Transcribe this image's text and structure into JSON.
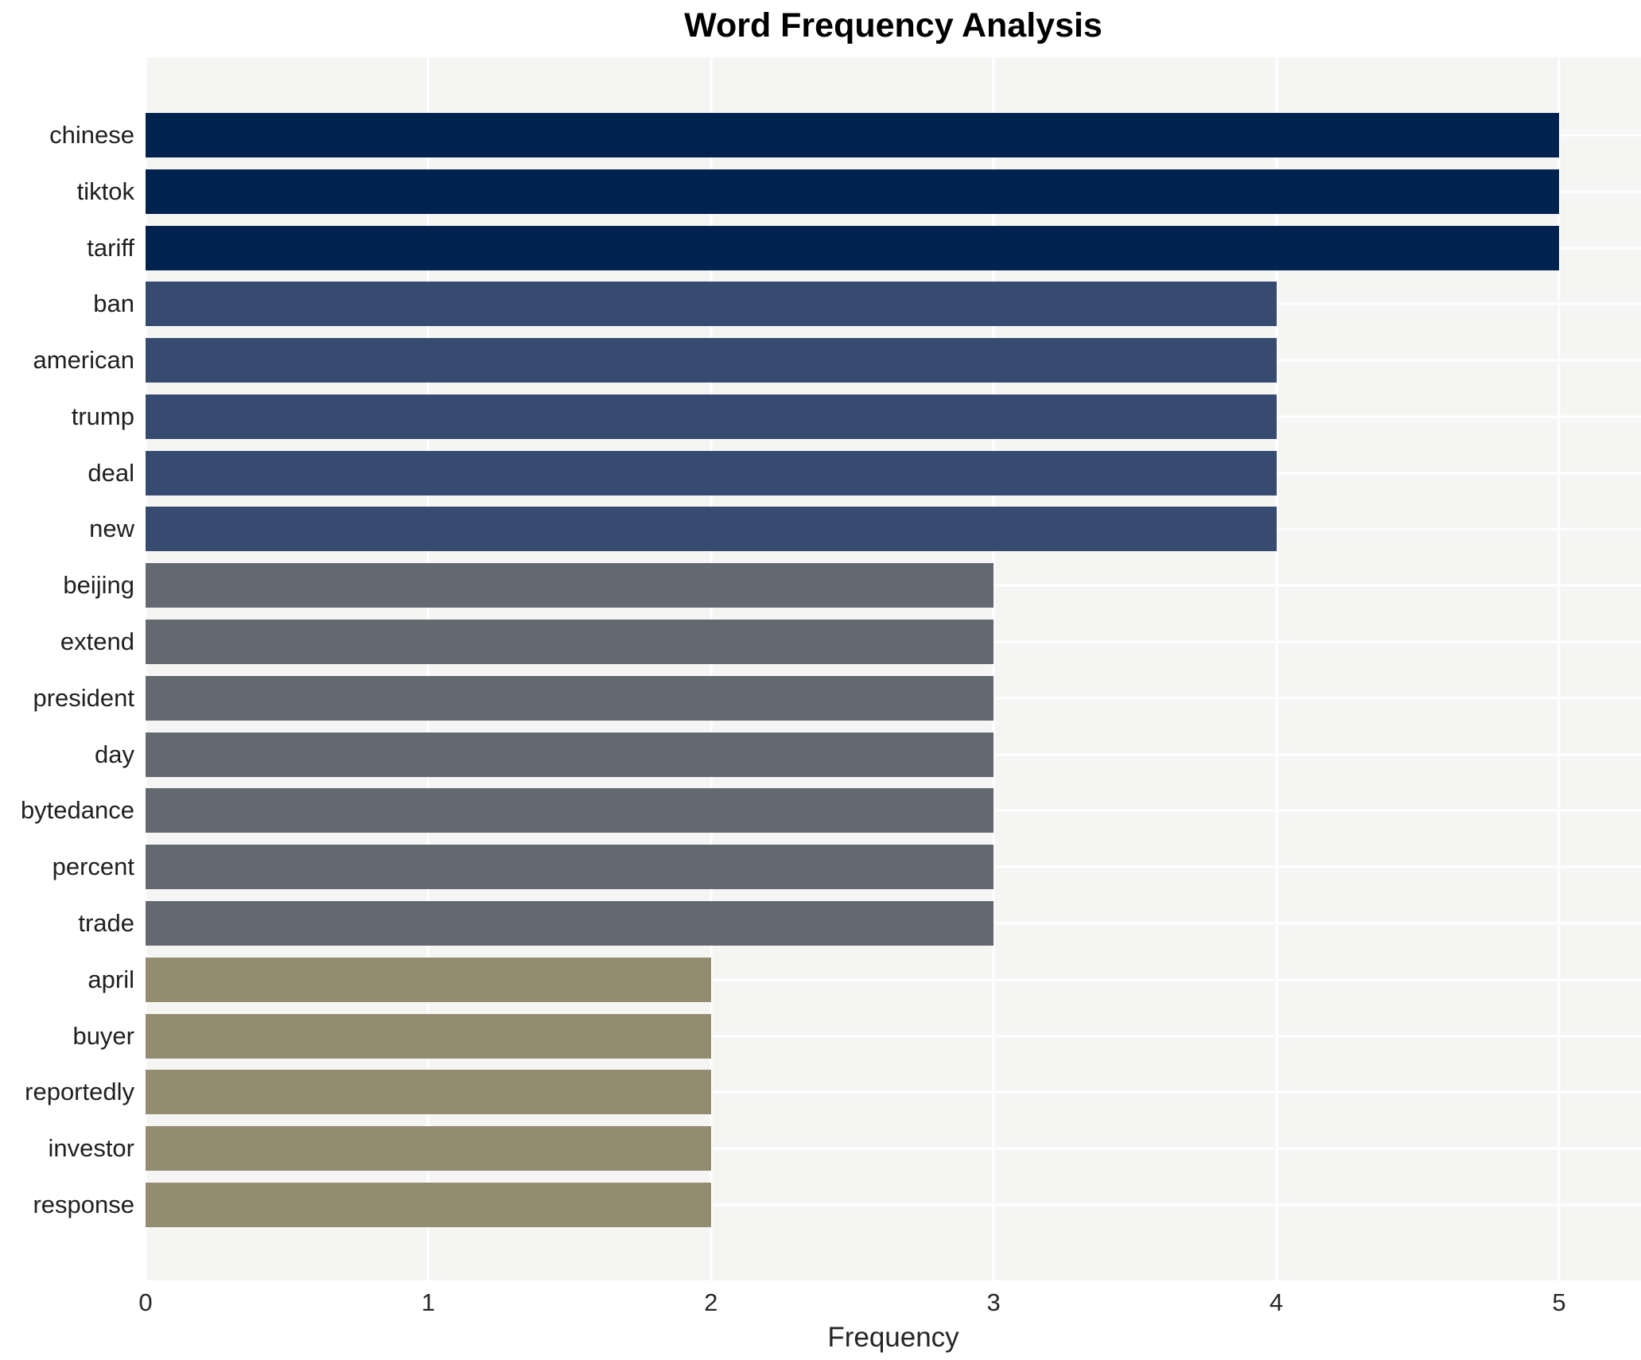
{
  "chart_data": {
    "type": "bar",
    "orientation": "horizontal",
    "title": "Word Frequency Analysis",
    "xlabel": "Frequency",
    "ylabel": "",
    "categories": [
      "chinese",
      "tiktok",
      "tariff",
      "ban",
      "american",
      "trump",
      "deal",
      "new",
      "beijing",
      "extend",
      "president",
      "day",
      "bytedance",
      "percent",
      "trade",
      "april",
      "buyer",
      "reportedly",
      "investor",
      "response"
    ],
    "values": [
      5,
      5,
      5,
      4,
      4,
      4,
      4,
      4,
      3,
      3,
      3,
      3,
      3,
      3,
      3,
      2,
      2,
      2,
      2,
      2
    ],
    "xticks": [
      0,
      1,
      2,
      3,
      4,
      5
    ],
    "xlim": [
      0,
      5.29
    ],
    "grid": true,
    "legend": false,
    "colors_by_value": {
      "5": "#00224e",
      "4": "#374a70",
      "3": "#646870",
      "2": "#938c71"
    },
    "plot_bg_color": "#f5f5f4",
    "grid_color": "#ffffff",
    "figure_bg_color": "#ffffff"
  }
}
